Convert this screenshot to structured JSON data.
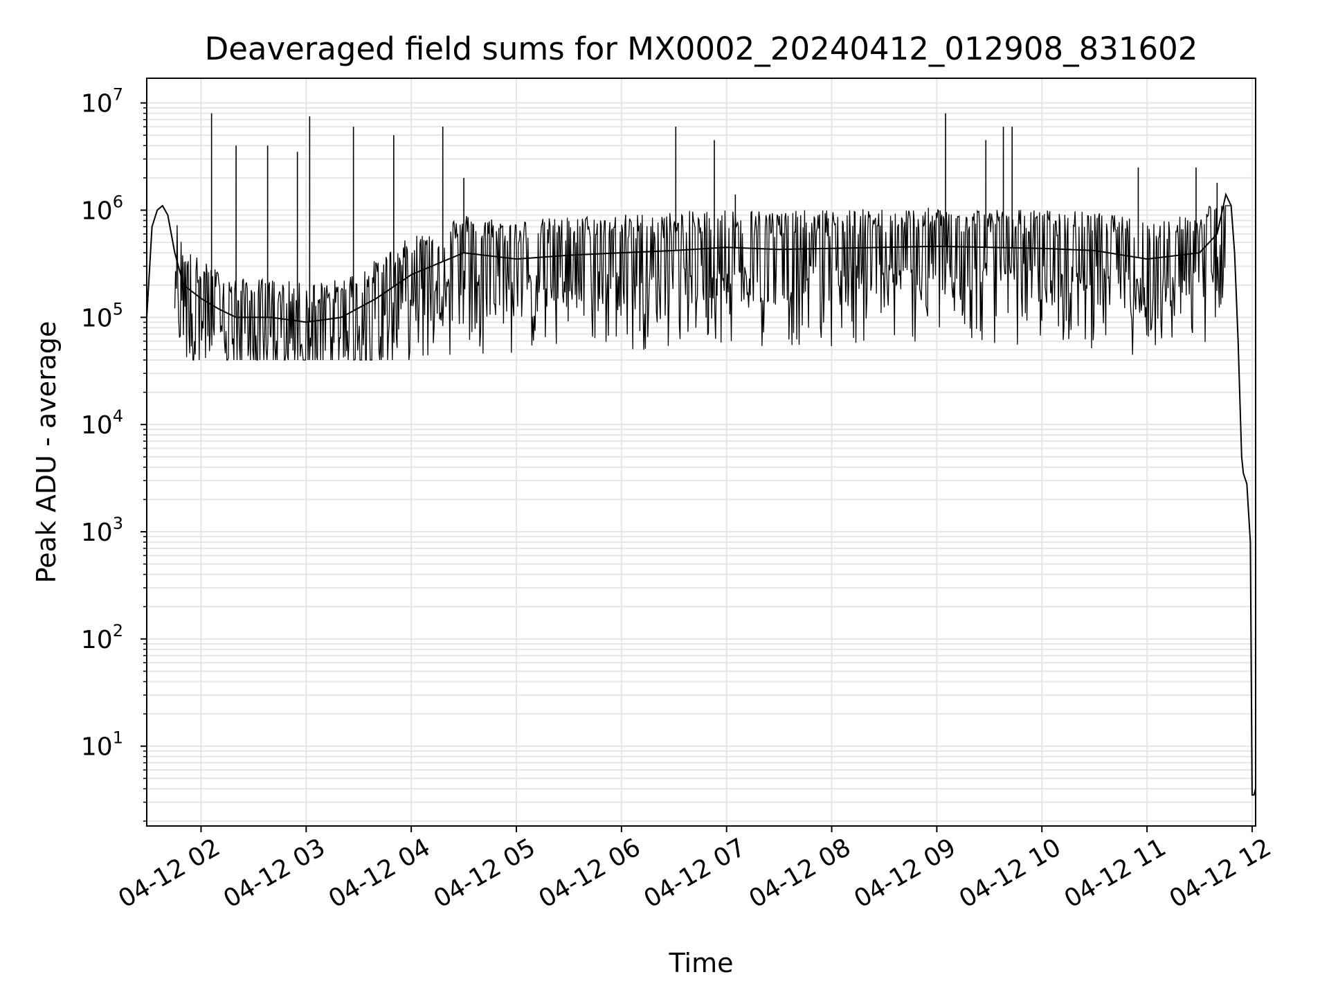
{
  "chart_data": {
    "type": "line",
    "title": "Deaveraged field sums for MX0002_20240412_012908_831602",
    "xlabel": "Time",
    "ylabel": "Peak ADU - average",
    "yscale": "log",
    "ylim": [
      1.8,
      17000000
    ],
    "xlim": [
      "2024-04-12 01:29",
      "2024-04-12 12:02"
    ],
    "grid": "major and minor",
    "x_tick_labels": [
      "04-12 02",
      "04-12 03",
      "04-12 04",
      "04-12 05",
      "04-12 06",
      "04-12 07",
      "04-12 08",
      "04-12 09",
      "04-12 10",
      "04-12 11",
      "04-12 12"
    ],
    "y_tick_labels": [
      {
        "base": "10",
        "exp": "1"
      },
      {
        "base": "10",
        "exp": "2"
      },
      {
        "base": "10",
        "exp": "3"
      },
      {
        "base": "10",
        "exp": "4"
      },
      {
        "base": "10",
        "exp": "5"
      },
      {
        "base": "10",
        "exp": "6"
      },
      {
        "base": "10",
        "exp": "7"
      }
    ],
    "line_color": "#000000",
    "grid_color": "#e6e6e6",
    "series": [
      {
        "x": [
          "2024-04-12 01:29",
          "2024-04-12 01:32",
          "2024-04-12 01:35",
          "2024-04-12 01:38",
          "2024-04-12 01:41",
          "2024-04-12 01:45",
          "2024-04-12 01:50",
          "2024-04-12 02:00",
          "2024-04-12 02:10",
          "2024-04-12 02:20",
          "2024-04-12 02:40",
          "2024-04-12 03:00",
          "2024-04-12 03:20",
          "2024-04-12 03:40",
          "2024-04-12 04:00",
          "2024-04-12 04:30",
          "2024-04-12 05:00",
          "2024-04-12 05:30",
          "2024-04-12 06:00",
          "2024-04-12 06:30",
          "2024-04-12 07:00",
          "2024-04-12 07:30",
          "2024-04-12 08:00",
          "2024-04-12 08:30",
          "2024-04-12 09:00",
          "2024-04-12 09:30",
          "2024-04-12 10:00",
          "2024-04-12 10:30",
          "2024-04-12 11:00",
          "2024-04-12 11:30",
          "2024-04-12 11:40",
          "2024-04-12 11:45",
          "2024-04-12 11:48",
          "2024-04-12 11:50",
          "2024-04-12 11:52",
          "2024-04-12 11:54",
          "2024-04-12 11:55",
          "2024-04-12 11:57",
          "2024-04-12 11:59",
          "2024-04-12 12:00",
          "2024-04-12 12:01",
          "2024-04-12 12:02"
        ],
        "y": [
          100000,
          700000,
          1000000,
          1100000,
          900000,
          400000,
          200000,
          150000,
          120000,
          100000,
          100000,
          90000,
          100000,
          150000,
          250000,
          400000,
          350000,
          380000,
          400000,
          420000,
          450000,
          430000,
          440000,
          450000,
          460000,
          450000,
          440000,
          420000,
          350000,
          400000,
          600000,
          1400000,
          1100000,
          400000,
          60000,
          5000,
          3500,
          2800,
          800,
          3.5,
          3.5,
          4
        ]
      }
    ],
    "spikes": [
      {
        "x": "2024-04-12 02:06",
        "y": 8000000
      },
      {
        "x": "2024-04-12 02:20",
        "y": 4000000
      },
      {
        "x": "2024-04-12 02:38",
        "y": 4000000
      },
      {
        "x": "2024-04-12 02:55",
        "y": 3500000
      },
      {
        "x": "2024-04-12 03:02",
        "y": 7500000
      },
      {
        "x": "2024-04-12 03:27",
        "y": 6000000
      },
      {
        "x": "2024-04-12 03:50",
        "y": 5000000
      },
      {
        "x": "2024-04-12 04:18",
        "y": 6000000
      },
      {
        "x": "2024-04-12 04:30",
        "y": 2000000
      },
      {
        "x": "2024-04-12 06:31",
        "y": 6000000
      },
      {
        "x": "2024-04-12 06:53",
        "y": 4500000
      },
      {
        "x": "2024-04-12 07:05",
        "y": 1400000
      },
      {
        "x": "2024-04-12 09:05",
        "y": 8000000
      },
      {
        "x": "2024-04-12 09:28",
        "y": 4500000
      },
      {
        "x": "2024-04-12 09:38",
        "y": 6000000
      },
      {
        "x": "2024-04-12 09:43",
        "y": 6000000
      },
      {
        "x": "2024-04-12 10:55",
        "y": 2500000
      },
      {
        "x": "2024-04-12 11:28",
        "y": 2500000
      },
      {
        "x": "2024-04-12 11:40",
        "y": 1800000
      }
    ]
  }
}
